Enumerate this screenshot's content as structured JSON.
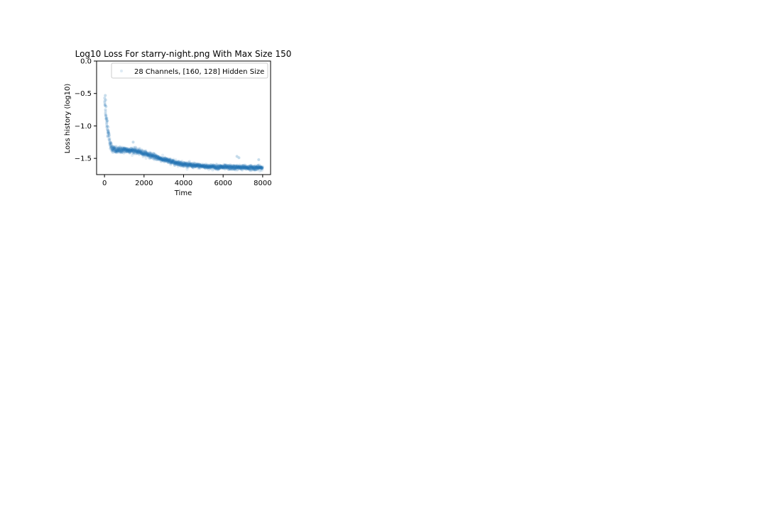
{
  "chart_data": {
    "type": "scatter",
    "title": "Log10 Loss For starry-night.png With Max Size 150",
    "xlabel": "Time",
    "ylabel": "Loss history (log10)",
    "xlim": [
      -400,
      8400
    ],
    "ylim": [
      -1.75,
      0.0
    ],
    "x_ticks": [
      0,
      2000,
      4000,
      6000,
      8000
    ],
    "y_ticks": [
      0.0,
      -0.5,
      -1.0,
      -1.5
    ],
    "x_tick_labels": [
      "0",
      "2000",
      "4000",
      "6000",
      "8000"
    ],
    "y_tick_labels": [
      "0.0",
      "−0.5",
      "−1.0",
      "−1.5"
    ],
    "grid": false,
    "legend_position": "top-right",
    "colors": {
      "series": "#1f77b4"
    },
    "series": [
      {
        "name": "28 Channels, [160, 128] Hidden Size",
        "marker": "circle",
        "alpha": 0.12,
        "trend": [
          [
            0,
            -0.6
          ],
          [
            50,
            -0.75
          ],
          [
            100,
            -0.95
          ],
          [
            150,
            -1.05
          ],
          [
            200,
            -1.1
          ],
          [
            250,
            -1.2
          ],
          [
            300,
            -1.3
          ],
          [
            400,
            -1.35
          ],
          [
            600,
            -1.38
          ],
          [
            800,
            -1.37
          ],
          [
            1000,
            -1.37
          ],
          [
            1500,
            -1.38
          ],
          [
            2000,
            -1.42
          ],
          [
            2500,
            -1.47
          ],
          [
            3000,
            -1.52
          ],
          [
            3500,
            -1.56
          ],
          [
            4000,
            -1.59
          ],
          [
            4500,
            -1.61
          ],
          [
            5000,
            -1.62
          ],
          [
            5500,
            -1.63
          ],
          [
            6000,
            -1.635
          ],
          [
            6500,
            -1.64
          ],
          [
            7000,
            -1.64
          ],
          [
            7500,
            -1.645
          ],
          [
            8000,
            -1.645
          ]
        ],
        "spread": [
          [
            0,
            0.1
          ],
          [
            200,
            0.1
          ],
          [
            400,
            0.06
          ],
          [
            1000,
            0.05
          ],
          [
            4000,
            0.04
          ],
          [
            8000,
            0.04
          ]
        ],
        "outliers": [
          [
            40,
            -0.53
          ],
          [
            60,
            -0.6
          ],
          [
            80,
            -0.7
          ],
          [
            120,
            -0.88
          ],
          [
            150,
            -0.92
          ],
          [
            1450,
            -1.25
          ],
          [
            6700,
            -1.47
          ],
          [
            6800,
            -1.49
          ],
          [
            7800,
            -1.52
          ]
        ]
      }
    ]
  }
}
